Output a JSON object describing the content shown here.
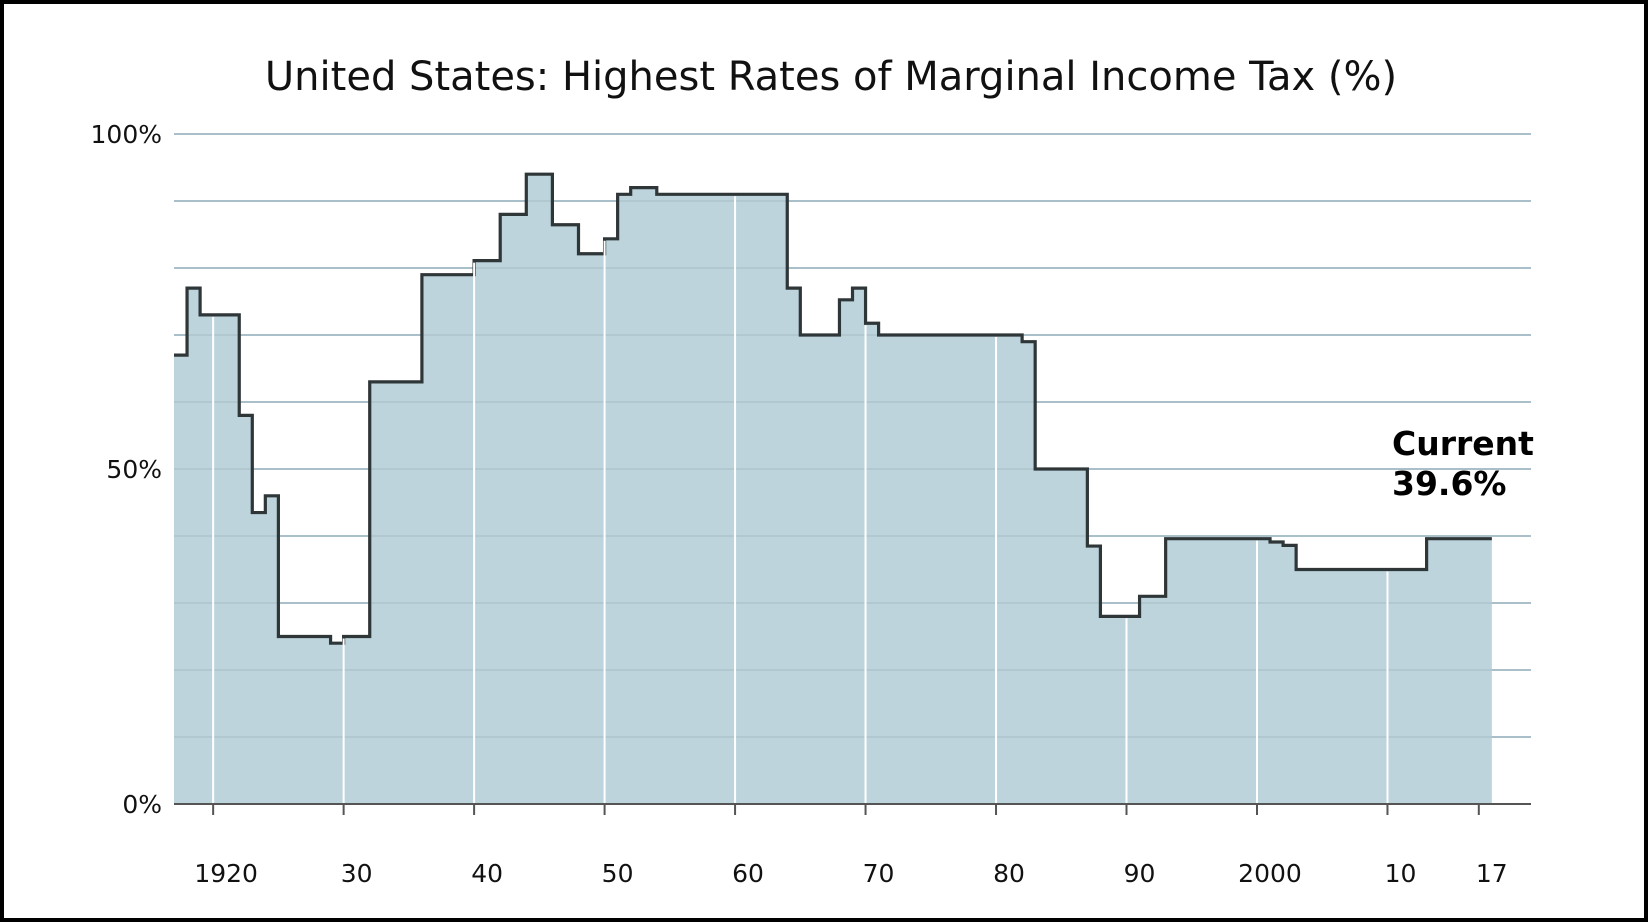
{
  "chart_data": {
    "type": "area",
    "step": true,
    "title": "United States: Highest Rates of Marginal Income Tax (%)",
    "xlabel": "",
    "ylabel": "",
    "xlim": [
      1917,
      2021
    ],
    "ylim": [
      0,
      100
    ],
    "y_ticks": [
      {
        "value": 0,
        "label": "0%"
      },
      {
        "value": 50,
        "label": "50%"
      },
      {
        "value": 100,
        "label": "100%"
      }
    ],
    "y_gridlines": [
      10,
      20,
      30,
      40,
      50,
      60,
      70,
      80,
      90,
      100
    ],
    "x_ticks": [
      {
        "value": 1920,
        "label": "1920"
      },
      {
        "value": 1930,
        "label": "30"
      },
      {
        "value": 1940,
        "label": "40"
      },
      {
        "value": 1950,
        "label": "50"
      },
      {
        "value": 1960,
        "label": "60"
      },
      {
        "value": 1970,
        "label": "70"
      },
      {
        "value": 1980,
        "label": "80"
      },
      {
        "value": 1990,
        "label": "90"
      },
      {
        "value": 2000,
        "label": "2000"
      },
      {
        "value": 2010,
        "label": "10"
      },
      {
        "value": 2017,
        "label": "17"
      }
    ],
    "x_gridlines": [
      1920,
      1930,
      1940,
      1950,
      1960,
      1970,
      1980,
      1990,
      2000,
      2010
    ],
    "series": [
      {
        "x": [
          1917,
          1918,
          1919,
          1922,
          1923,
          1924,
          1925,
          1929,
          1930,
          1932,
          1936,
          1940,
          1942,
          1944,
          1946,
          1948,
          1950,
          1951,
          1952,
          1954,
          1964,
          1965,
          1968,
          1969,
          1970,
          1971,
          1982,
          1983,
          1987,
          1988,
          1991,
          1993,
          2001,
          2002,
          2003,
          2013,
          2018
        ],
        "y": [
          67,
          77,
          73,
          58,
          43.5,
          46,
          25,
          24,
          25,
          63,
          79,
          81.1,
          88,
          94,
          86.45,
          82.13,
          84.36,
          91,
          92,
          91,
          77,
          70,
          75.25,
          77,
          71.75,
          70,
          69,
          50,
          38.5,
          28,
          31,
          39.6,
          39.1,
          38.6,
          35,
          39.6,
          39.6
        ]
      }
    ],
    "fill_color": "#bdd4dc",
    "line_color": "#2f3638",
    "grid_color": "#a9bfc9",
    "annotation": {
      "line1": "Current",
      "line2": "39.6%"
    }
  }
}
